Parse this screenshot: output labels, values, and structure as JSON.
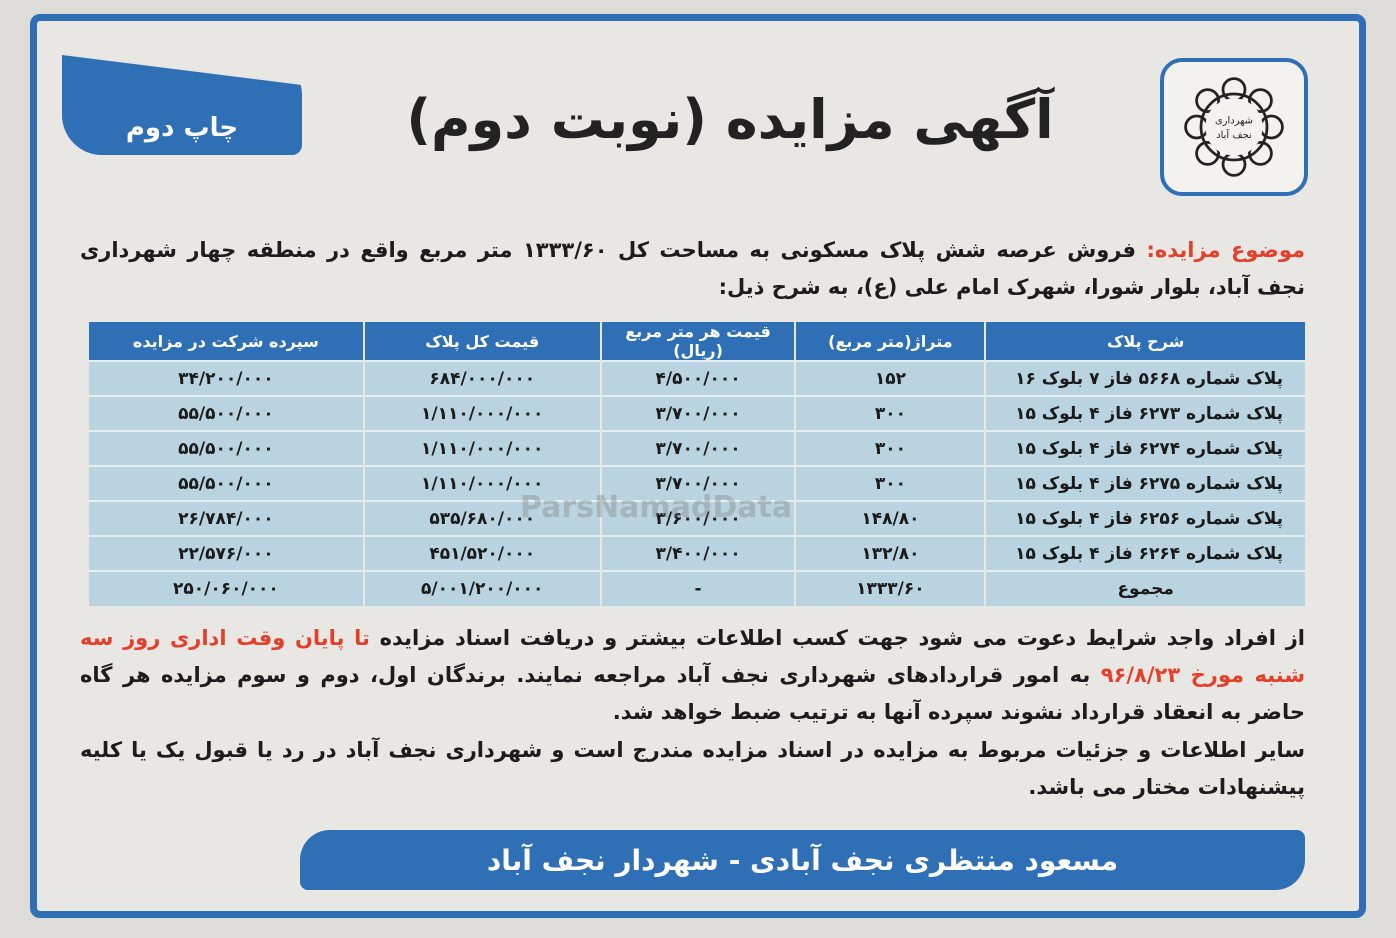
{
  "logo": {
    "text": "شهرداری نجف آباد"
  },
  "badge": "چاپ دوم",
  "title": "آگهی مزایده (نوبت دوم)",
  "subject": {
    "label": "موضوع مزایده:",
    "text": " فروش عرصه شش پلاک مسکونی به مساحت کل ۱۳۳۳/۶۰ متر مربع واقع در منطقه چهار شهرداری نجف آباد، بلوار شورا، شهرک امام علی (ع)، به شرح ذیل:"
  },
  "table": {
    "headers": [
      "شرح پلاک",
      "متراژ(متر مربع)",
      "قیمت هر متر مربع (ریال)",
      "قیمت کل پلاک",
      "سپرده شرکت در مزایده"
    ],
    "rows": [
      [
        "پلاک شماره ۵۶۶۸ فاز ۷ بلوک ۱۶",
        "۱۵۲",
        "۴/۵۰۰/۰۰۰",
        "۶۸۴/۰۰۰/۰۰۰",
        "۳۴/۲۰۰/۰۰۰"
      ],
      [
        "پلاک شماره ۶۲۷۳ فاز ۴ بلوک ۱۵",
        "۳۰۰",
        "۳/۷۰۰/۰۰۰",
        "۱/۱۱۰/۰۰۰/۰۰۰",
        "۵۵/۵۰۰/۰۰۰"
      ],
      [
        "پلاک شماره ۶۲۷۴ فاز ۴ بلوک ۱۵",
        "۳۰۰",
        "۳/۷۰۰/۰۰۰",
        "۱/۱۱۰/۰۰۰/۰۰۰",
        "۵۵/۵۰۰/۰۰۰"
      ],
      [
        "پلاک شماره ۶۲۷۵ فاز ۴ بلوک ۱۵",
        "۳۰۰",
        "۳/۷۰۰/۰۰۰",
        "۱/۱۱۰/۰۰۰/۰۰۰",
        "۵۵/۵۰۰/۰۰۰"
      ],
      [
        "پلاک شماره ۶۲۵۶ فاز ۴ بلوک ۱۵",
        "۱۴۸/۸۰",
        "۳/۶۰۰/۰۰۰",
        "۵۳۵/۶۸۰/۰۰۰",
        "۲۶/۷۸۴/۰۰۰"
      ],
      [
        "پلاک شماره ۶۲۶۴ فاز ۴ بلوک ۱۵",
        "۱۳۲/۸۰",
        "۳/۴۰۰/۰۰۰",
        "۴۵۱/۵۲۰/۰۰۰",
        "۲۲/۵۷۶/۰۰۰"
      ],
      [
        "مجموع",
        "۱۳۳۳/۶۰",
        "-",
        "۵/۰۰۱/۲۰۰/۰۰۰",
        "۲۵۰/۰۶۰/۰۰۰"
      ]
    ]
  },
  "watermark": "ParsNamadData",
  "body": {
    "p1_a": "از افراد واجد شرایط دعوت می شود جهت کسب اطلاعات بیشتر و دریافت اسناد مزایده ",
    "p1_red": "تا پایان وقت اداری روز سه شنبه مورخ ۹۶/۸/۲۳",
    "p1_b": " به امور قراردادهای شهرداری نجف آباد مراجعه نمایند. برندگان اول، دوم و سوم مزایده هر گاه حاضر به انعقاد قرارداد نشوند سپرده آنها به ترتیب ضبط خواهد شد.",
    "p2": "سایر اطلاعات و جزئیات مربوط به مزایده در اسناد مزایده مندرج است و شهرداری نجف آباد در رد یا قبول یک یا کلیه پیشنهادات مختار می باشد."
  },
  "footer": "مسعود منتظری نجف آبادی - شهردار نجف آباد",
  "colors": {
    "brand_blue": "#2f6fb5",
    "highlight_red": "#e3402c",
    "table_row": "#b9d4e0"
  }
}
